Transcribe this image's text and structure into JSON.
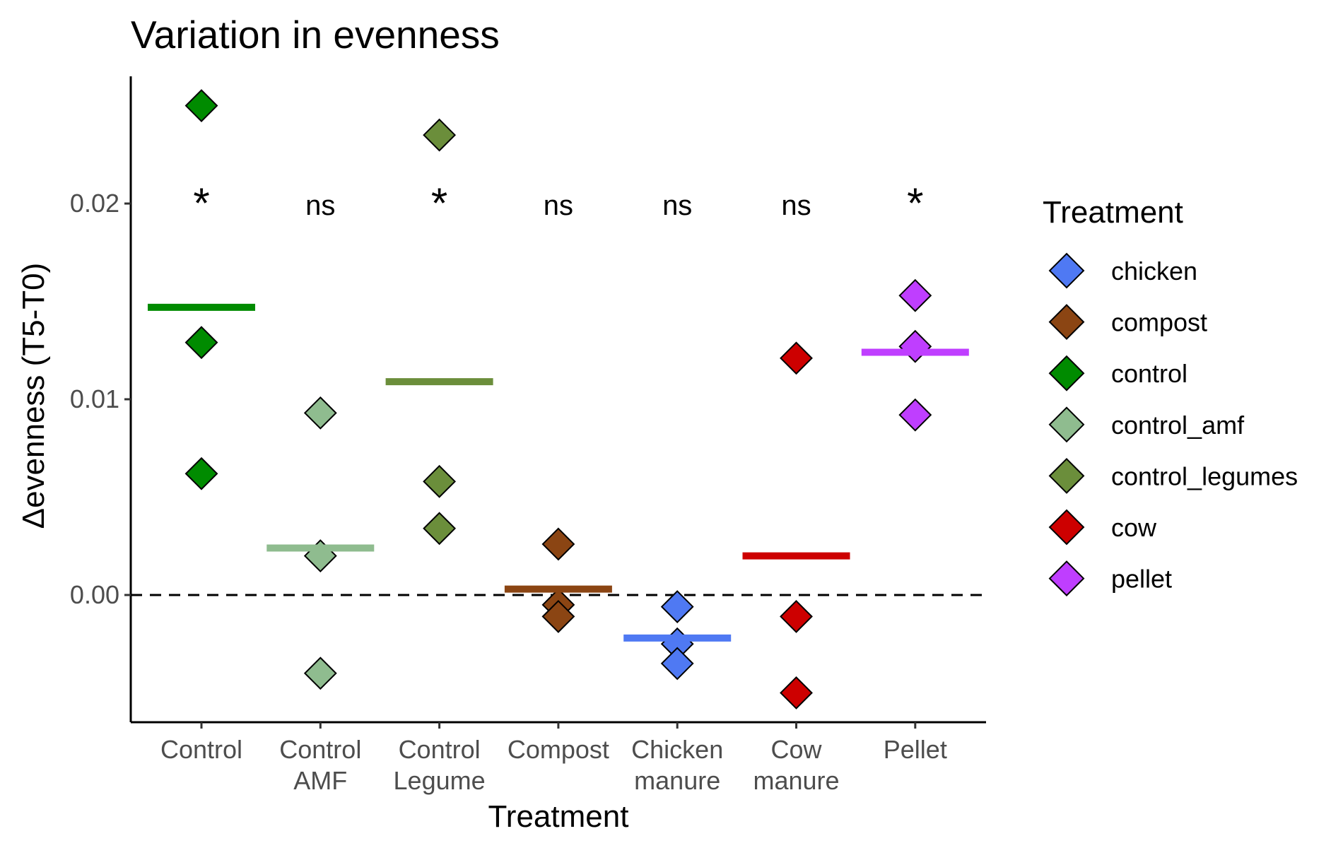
{
  "chart_data": {
    "type": "scatter",
    "title": "Variation in evenness",
    "xlabel": "Treatment",
    "ylabel": "Δevenness (T5-T0)",
    "ylim": [
      -0.0065,
      0.0265
    ],
    "yticks": [
      0.0,
      0.01,
      0.02
    ],
    "ytick_labels": [
      "0.00",
      "0.01",
      "0.02"
    ],
    "reference_line": {
      "y": 0.0,
      "style": "dashed"
    },
    "grid": false,
    "legend": {
      "title": "Treatment",
      "placement": "right",
      "entries": [
        {
          "label": "chicken",
          "color": "#4f79f3"
        },
        {
          "label": "compost",
          "color": "#8b4513"
        },
        {
          "label": "control",
          "color": "#008b00"
        },
        {
          "label": "control_amf",
          "color": "#8fbc8f"
        },
        {
          "label": "control_legumes",
          "color": "#6b8e3b"
        },
        {
          "label": "cow",
          "color": "#cd0000"
        },
        {
          "label": "pellet",
          "color": "#bf3eff"
        }
      ]
    },
    "categories": [
      {
        "label_lines": [
          "Control"
        ],
        "series": "control",
        "mean": 0.0147,
        "points": [
          0.025,
          0.0129,
          0.0062
        ],
        "significance": "*"
      },
      {
        "label_lines": [
          "Control",
          "AMF"
        ],
        "series": "control_amf",
        "mean": 0.0024,
        "points": [
          0.0093,
          0.002,
          -0.004
        ],
        "significance": "ns"
      },
      {
        "label_lines": [
          "Control",
          "Legume"
        ],
        "series": "control_legumes",
        "mean": 0.0109,
        "points": [
          0.0235,
          0.0058,
          0.0034
        ],
        "significance": "*"
      },
      {
        "label_lines": [
          "Compost"
        ],
        "series": "compost",
        "mean": 0.0003,
        "points": [
          0.0026,
          -0.0005,
          -0.0011
        ],
        "significance": "ns"
      },
      {
        "label_lines": [
          "Chicken",
          "manure"
        ],
        "series": "chicken",
        "mean": -0.0022,
        "points": [
          -0.0006,
          -0.0025,
          -0.0035
        ],
        "significance": "ns"
      },
      {
        "label_lines": [
          "Cow",
          "manure"
        ],
        "series": "cow",
        "mean": 0.002,
        "points": [
          0.0121,
          -0.0011,
          -0.005
        ],
        "significance": "ns"
      },
      {
        "label_lines": [
          "Pellet"
        ],
        "series": "pellet",
        "mean": 0.0124,
        "points": [
          0.0153,
          0.0127,
          0.0092
        ],
        "significance": "*"
      }
    ]
  }
}
